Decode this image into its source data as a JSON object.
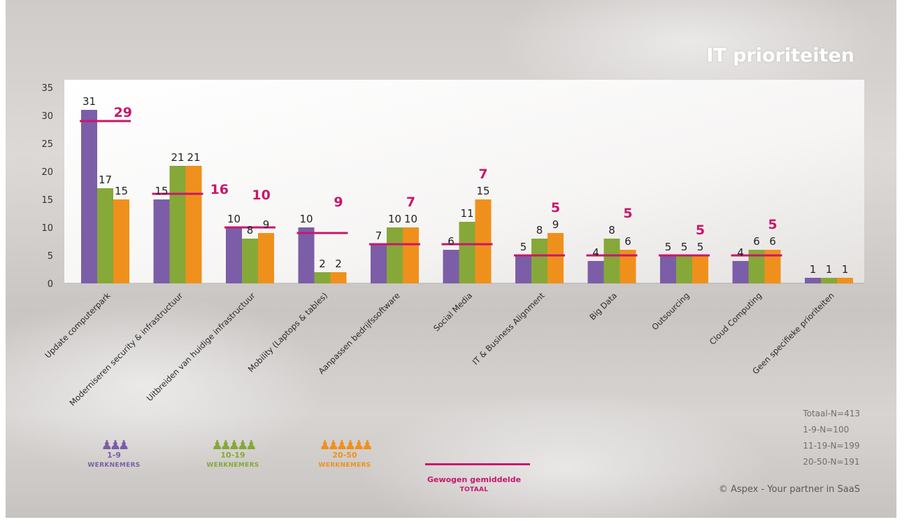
{
  "chart_data": {
    "type": "bar",
    "title": "IT prioriteiten",
    "ylim": [
      0,
      35
    ],
    "yticks": [
      0,
      5,
      10,
      15,
      20,
      25,
      30,
      35
    ],
    "grid": false,
    "legend_position": "bottom",
    "categories": [
      "Update computerpark",
      "Moderniseren security & infrastructuur",
      "Uitbreiden van huidige infrastructuur",
      "Mobility (Laptops & tables)",
      "Aanpassen bedrijfssoftware",
      "Social Media",
      "IT & Business Alignment",
      "Big Data",
      "Outsourcing",
      "Cloud Computing",
      "Geen specifieke prioriteiten"
    ],
    "series": [
      {
        "name": "1-9 WERKNEMERS",
        "color": "#7b5ea7",
        "values": [
          31,
          15,
          10,
          10,
          7,
          6,
          5,
          4,
          5,
          4,
          1
        ]
      },
      {
        "name": "10-19 WERKNEMERS",
        "color": "#86a838",
        "values": [
          17,
          21,
          8,
          2,
          10,
          11,
          8,
          8,
          5,
          6,
          1
        ]
      },
      {
        "name": "20-50 WERKNEMERS",
        "color": "#f0901c",
        "values": [
          15,
          21,
          9,
          2,
          10,
          15,
          9,
          6,
          5,
          6,
          1
        ]
      }
    ],
    "weighted_average": {
      "name": "Gewogen gemiddelde TOTAAL",
      "color": "#c8176c",
      "values": [
        29,
        16,
        10,
        9,
        7,
        7,
        5,
        5,
        5,
        5,
        null
      ]
    }
  },
  "legend": [
    {
      "icon": "people-small-icon",
      "glyph": "♟♟♟",
      "range": "1-9",
      "label": "WERKNEMERS",
      "color": "#7b5ea7"
    },
    {
      "icon": "people-medium-icon",
      "glyph": "♟♟♟♟♟",
      "range": "10-19",
      "label": "WERKNEMERS",
      "color": "#86a838"
    },
    {
      "icon": "people-large-icon",
      "glyph": "♟♟♟♟♟♟",
      "range": "20-50",
      "label": "WERKNEMERS",
      "color": "#f0901c"
    },
    {
      "icon": "average-line-icon",
      "range": "Gewogen gemiddelde",
      "label": "TOTAAL",
      "color": "#c8176c"
    }
  ],
  "stats": [
    "Totaal-N=413",
    "1-9-N=100",
    "11-19-N=199",
    "20-50-N=191"
  ],
  "copyright": "© Aspex - Your partner in SaaS"
}
